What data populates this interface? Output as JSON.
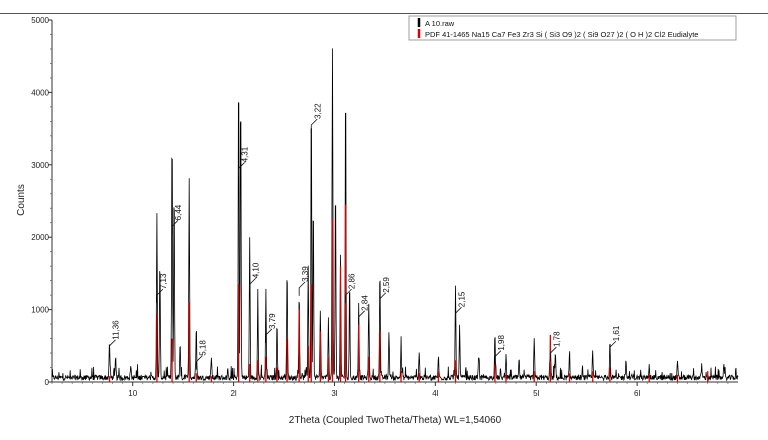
{
  "chart_data": {
    "type": "line",
    "xlabel": "2Theta (Coupled TwoTheta/Theta) WL=1,54060",
    "ylabel": "Counts",
    "xlim": [
      2,
      70
    ],
    "ylim": [
      0,
      5000
    ],
    "x_ticks": [
      10,
      20,
      30,
      40,
      50,
      60
    ],
    "x_tick_labels": [
      "10",
      "2l",
      "3l",
      "4l",
      "5l",
      "6l"
    ],
    "y_ticks": [
      0,
      1000,
      2000,
      3000,
      4000,
      5000
    ],
    "y_tick_labels": [
      "0",
      "1000",
      "2000",
      "3000",
      "4000",
      "5000"
    ],
    "grid": false,
    "legend_position": "top-right",
    "legend": [
      {
        "name": "A 10.raw",
        "color": "#000000"
      },
      {
        "name": "PDF 41-1465 Na15 Ca7 Fe3 Zr3 Si ( Si3 O9 )2 ( Si9 O27 )2 ( O H )2 Cl2 Eudialyte",
        "color": "#e00000"
      }
    ],
    "series": [
      {
        "name": "A 10.raw",
        "color": "#000000",
        "baseline": 60,
        "peaks": [
          {
            "x": 7.7,
            "y": 500
          },
          {
            "x": 8.3,
            "y": 280
          },
          {
            "x": 9.8,
            "y": 180
          },
          {
            "x": 12.4,
            "y": 2250
          },
          {
            "x": 12.7,
            "y": 1650
          },
          {
            "x": 13.9,
            "y": 3420
          },
          {
            "x": 14.1,
            "y": 2650
          },
          {
            "x": 14.7,
            "y": 450
          },
          {
            "x": 15.6,
            "y": 2750
          },
          {
            "x": 16.3,
            "y": 700
          },
          {
            "x": 17.8,
            "y": 300
          },
          {
            "x": 20.5,
            "y": 4320
          },
          {
            "x": 20.7,
            "y": 4050
          },
          {
            "x": 21.6,
            "y": 1950
          },
          {
            "x": 22.4,
            "y": 1100
          },
          {
            "x": 23.2,
            "y": 1200
          },
          {
            "x": 24.3,
            "y": 750
          },
          {
            "x": 25.3,
            "y": 1500
          },
          {
            "x": 26.5,
            "y": 1200
          },
          {
            "x": 27.4,
            "y": 1550
          },
          {
            "x": 27.7,
            "y": 3950
          },
          {
            "x": 27.9,
            "y": 2500
          },
          {
            "x": 28.6,
            "y": 900
          },
          {
            "x": 29.4,
            "y": 800
          },
          {
            "x": 29.8,
            "y": 4550
          },
          {
            "x": 30.1,
            "y": 2700
          },
          {
            "x": 30.6,
            "y": 1700
          },
          {
            "x": 31.1,
            "y": 4130
          },
          {
            "x": 31.5,
            "y": 1300
          },
          {
            "x": 32.4,
            "y": 1000
          },
          {
            "x": 33.4,
            "y": 1050
          },
          {
            "x": 34.5,
            "y": 1500
          },
          {
            "x": 35.4,
            "y": 600
          },
          {
            "x": 36.6,
            "y": 400
          },
          {
            "x": 38.4,
            "y": 350
          },
          {
            "x": 40.3,
            "y": 300
          },
          {
            "x": 42.0,
            "y": 1260
          },
          {
            "x": 42.4,
            "y": 700
          },
          {
            "x": 44.3,
            "y": 300
          },
          {
            "x": 45.9,
            "y": 600
          },
          {
            "x": 47.0,
            "y": 300
          },
          {
            "x": 48.3,
            "y": 250
          },
          {
            "x": 49.8,
            "y": 550
          },
          {
            "x": 51.4,
            "y": 500
          },
          {
            "x": 51.9,
            "y": 350
          },
          {
            "x": 53.3,
            "y": 300
          },
          {
            "x": 55.6,
            "y": 350
          },
          {
            "x": 57.3,
            "y": 550
          },
          {
            "x": 58.9,
            "y": 250
          },
          {
            "x": 61.2,
            "y": 200
          },
          {
            "x": 64.0,
            "y": 220
          },
          {
            "x": 66.4,
            "y": 180
          },
          {
            "x": 68.6,
            "y": 160
          }
        ]
      },
      {
        "name": "PDF 41-1465 Na15 Ca7 Fe3 Zr3 Si ( Si3 O9 )2 ( Si9 O27 )2 ( O H )2 Cl2 Eudialyte",
        "color": "#e00000",
        "sticks": [
          {
            "x": 7.7,
            "y": 80
          },
          {
            "x": 12.4,
            "y": 950
          },
          {
            "x": 13.9,
            "y": 600
          },
          {
            "x": 15.6,
            "y": 1100
          },
          {
            "x": 16.3,
            "y": 120
          },
          {
            "x": 17.8,
            "y": 80
          },
          {
            "x": 20.5,
            "y": 1350
          },
          {
            "x": 21.6,
            "y": 250
          },
          {
            "x": 22.4,
            "y": 300
          },
          {
            "x": 23.2,
            "y": 350
          },
          {
            "x": 24.3,
            "y": 200
          },
          {
            "x": 25.3,
            "y": 600
          },
          {
            "x": 26.5,
            "y": 1000
          },
          {
            "x": 27.4,
            "y": 500
          },
          {
            "x": 27.7,
            "y": 1350
          },
          {
            "x": 28.6,
            "y": 700
          },
          {
            "x": 29.4,
            "y": 350
          },
          {
            "x": 29.8,
            "y": 2250
          },
          {
            "x": 30.6,
            "y": 1600
          },
          {
            "x": 31.1,
            "y": 2450
          },
          {
            "x": 32.4,
            "y": 800
          },
          {
            "x": 33.4,
            "y": 350
          },
          {
            "x": 34.5,
            "y": 700
          },
          {
            "x": 36.6,
            "y": 150
          },
          {
            "x": 38.4,
            "y": 120
          },
          {
            "x": 40.3,
            "y": 150
          },
          {
            "x": 42.0,
            "y": 300
          },
          {
            "x": 45.9,
            "y": 250
          },
          {
            "x": 47.0,
            "y": 100
          },
          {
            "x": 49.8,
            "y": 150
          },
          {
            "x": 51.4,
            "y": 650
          },
          {
            "x": 53.3,
            "y": 120
          },
          {
            "x": 55.6,
            "y": 150
          },
          {
            "x": 57.3,
            "y": 200
          },
          {
            "x": 61.2,
            "y": 100
          },
          {
            "x": 64.0,
            "y": 100
          },
          {
            "x": 67.0,
            "y": 150
          }
        ]
      }
    ],
    "peak_labels": [
      {
        "text": "11,36",
        "x": 7.7,
        "y": 500
      },
      {
        "text": "7,13",
        "x": 12.4,
        "y": 1200
      },
      {
        "text": "6,44",
        "x": 13.9,
        "y": 2150
      },
      {
        "text": "5,18",
        "x": 16.3,
        "y": 280
      },
      {
        "text": "4,31",
        "x": 20.5,
        "y": 2950
      },
      {
        "text": "4,10",
        "x": 21.6,
        "y": 1350
      },
      {
        "text": "3,79",
        "x": 23.2,
        "y": 650
      },
      {
        "text": "3,39",
        "x": 26.5,
        "y": 1300
      },
      {
        "text": "3,22",
        "x": 27.7,
        "y": 3550
      },
      {
        "text": "2,86",
        "x": 31.1,
        "y": 1200
      },
      {
        "text": "2,84",
        "x": 32.4,
        "y": 900
      },
      {
        "text": "2,59",
        "x": 34.5,
        "y": 1150
      },
      {
        "text": "2,15",
        "x": 42.0,
        "y": 950
      },
      {
        "text": "1,98",
        "x": 45.9,
        "y": 350
      },
      {
        "text": "1,78",
        "x": 51.4,
        "y": 400
      },
      {
        "text": "1,61",
        "x": 57.3,
        "y": 480
      }
    ]
  }
}
